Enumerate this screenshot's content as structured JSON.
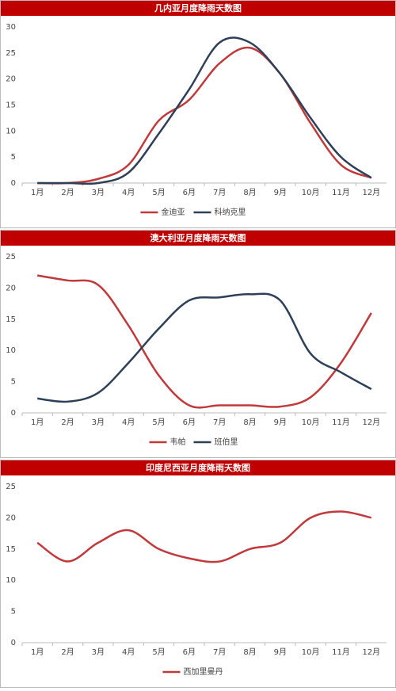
{
  "chart_data": [
    {
      "type": "line",
      "title": "几内亚月度降雨天数图",
      "categories": [
        "1月",
        "2月",
        "3月",
        "4月",
        "5月",
        "6月",
        "7月",
        "8月",
        "9月",
        "10月",
        "11月",
        "12月"
      ],
      "series": [
        {
          "name": "金迪亚",
          "color": "#c0393b",
          "values": [
            0,
            0,
            0.8,
            3.5,
            12,
            16,
            23,
            26,
            21,
            11.5,
            3.5,
            1
          ]
        },
        {
          "name": "科纳克里",
          "color": "#2e4057",
          "values": [
            0,
            0,
            0,
            2,
            9.5,
            18,
            27,
            27,
            21,
            12.5,
            5,
            1
          ]
        }
      ],
      "ylim": [
        0,
        30
      ],
      "yticks": [
        0,
        5,
        10,
        15,
        20,
        25,
        30
      ],
      "legend": "bottom"
    },
    {
      "type": "line",
      "title": "澳大利亚月度降雨天数图",
      "categories": [
        "1月",
        "2月",
        "3月",
        "4月",
        "5月",
        "6月",
        "7月",
        "8月",
        "9月",
        "10月",
        "11月",
        "12月"
      ],
      "series": [
        {
          "name": "韦帕",
          "color": "#c0393b",
          "values": [
            22,
            21.2,
            20.5,
            14,
            6,
            1.2,
            1.2,
            1.2,
            1,
            2.5,
            8,
            16
          ]
        },
        {
          "name": "班伯里",
          "color": "#2e4057",
          "values": [
            2.3,
            1.8,
            3.2,
            8,
            13.5,
            18,
            18.5,
            19,
            18,
            9.5,
            6.5,
            3.8
          ]
        }
      ],
      "ylim": [
        0,
        25
      ],
      "yticks": [
        0,
        5,
        10,
        15,
        20,
        25
      ],
      "legend": "bottom"
    },
    {
      "type": "line",
      "title": "印度尼西亚月度降雨天数图",
      "categories": [
        "1月",
        "2月",
        "3月",
        "4月",
        "5月",
        "6月",
        "7月",
        "8月",
        "9月",
        "10月",
        "11月",
        "12月"
      ],
      "series": [
        {
          "name": "西加里曼丹",
          "color": "#c0393b",
          "values": [
            16,
            13,
            16,
            18,
            15,
            13.5,
            13,
            15,
            16,
            20,
            21,
            20
          ]
        }
      ],
      "ylim": [
        0,
        25
      ],
      "yticks": [
        0,
        5,
        10,
        15,
        20,
        25
      ],
      "legend": "bottom"
    }
  ]
}
